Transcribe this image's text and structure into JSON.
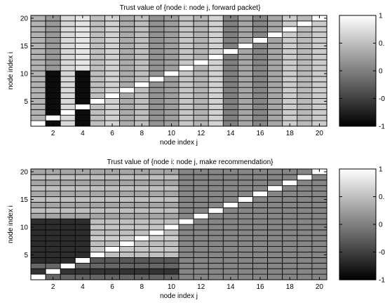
{
  "chart_data": [
    {
      "type": "heatmap",
      "title": "Trust value of {node i: node j, forward packet}",
      "xlabel": "node index j",
      "ylabel": "node index i",
      "x": [
        1,
        2,
        3,
        4,
        5,
        6,
        7,
        8,
        9,
        10,
        11,
        12,
        13,
        14,
        15,
        16,
        17,
        18,
        19,
        20
      ],
      "y": [
        1,
        2,
        3,
        4,
        5,
        6,
        7,
        8,
        9,
        10,
        11,
        12,
        13,
        14,
        15,
        16,
        17,
        18,
        19,
        20
      ],
      "xlim": [
        1,
        20
      ],
      "ylim": [
        1,
        20
      ],
      "xticks": [
        2,
        4,
        6,
        8,
        10,
        12,
        14,
        16,
        18,
        20
      ],
      "yticks": [
        5,
        10,
        15,
        20
      ],
      "clim": [
        -1,
        1
      ],
      "colorbar_ticks": [
        1,
        0.5,
        0,
        -0.5,
        -1
      ],
      "colormap": "gray",
      "column_values": [
        0.4,
        -0.9,
        0.7,
        -0.9,
        0.5,
        0.65,
        0.35,
        0.5,
        0.15,
        0.25,
        0.55,
        0.4,
        0.65,
        0.0,
        0.3,
        0.05,
        0.3,
        0.6,
        0.45,
        0.6
      ],
      "column_values_upper": [
        0.4,
        0.2,
        0.7,
        0.8,
        0.5,
        0.65,
        0.35,
        0.5,
        0.15,
        0.25,
        0.55,
        0.4,
        0.65,
        0.0,
        0.3,
        0.05,
        0.3,
        0.6,
        0.45,
        0.6
      ],
      "split_row": 11,
      "diagonal_value": 1
    },
    {
      "type": "heatmap",
      "title": "Trust value of {node i: node j, make recommendation}",
      "xlabel": "node index j",
      "ylabel": "node index i",
      "x": [
        1,
        2,
        3,
        4,
        5,
        6,
        7,
        8,
        9,
        10,
        11,
        12,
        13,
        14,
        15,
        16,
        17,
        18,
        19,
        20
      ],
      "y": [
        1,
        2,
        3,
        4,
        5,
        6,
        7,
        8,
        9,
        10,
        11,
        12,
        13,
        14,
        15,
        16,
        17,
        18,
        19,
        20
      ],
      "xlim": [
        1,
        20
      ],
      "ylim": [
        1,
        20
      ],
      "xticks": [
        2,
        4,
        6,
        8,
        10,
        12,
        14,
        16,
        18,
        20
      ],
      "yticks": [
        5,
        10,
        15,
        20
      ],
      "clim": [
        -1,
        1
      ],
      "colorbar_ticks": [
        1,
        0.5,
        0,
        -0.5,
        -1
      ],
      "colormap": "gray",
      "row_values": [
        -0.2,
        -0.6,
        -0.2,
        -0.3,
        0.5,
        0.55,
        0.5,
        0.6,
        0.5,
        0.55,
        0.5,
        0.3,
        0.5,
        0.3,
        0.5,
        0.3,
        0.5,
        0.3,
        0.5,
        0.3
      ],
      "lower_right_value": 0.05,
      "upper_left_value": 0.05,
      "block_value": -0.65,
      "block_rows": [
        4,
        11
      ],
      "block_cols": [
        1,
        4
      ],
      "diagonal_value": 1
    }
  ]
}
